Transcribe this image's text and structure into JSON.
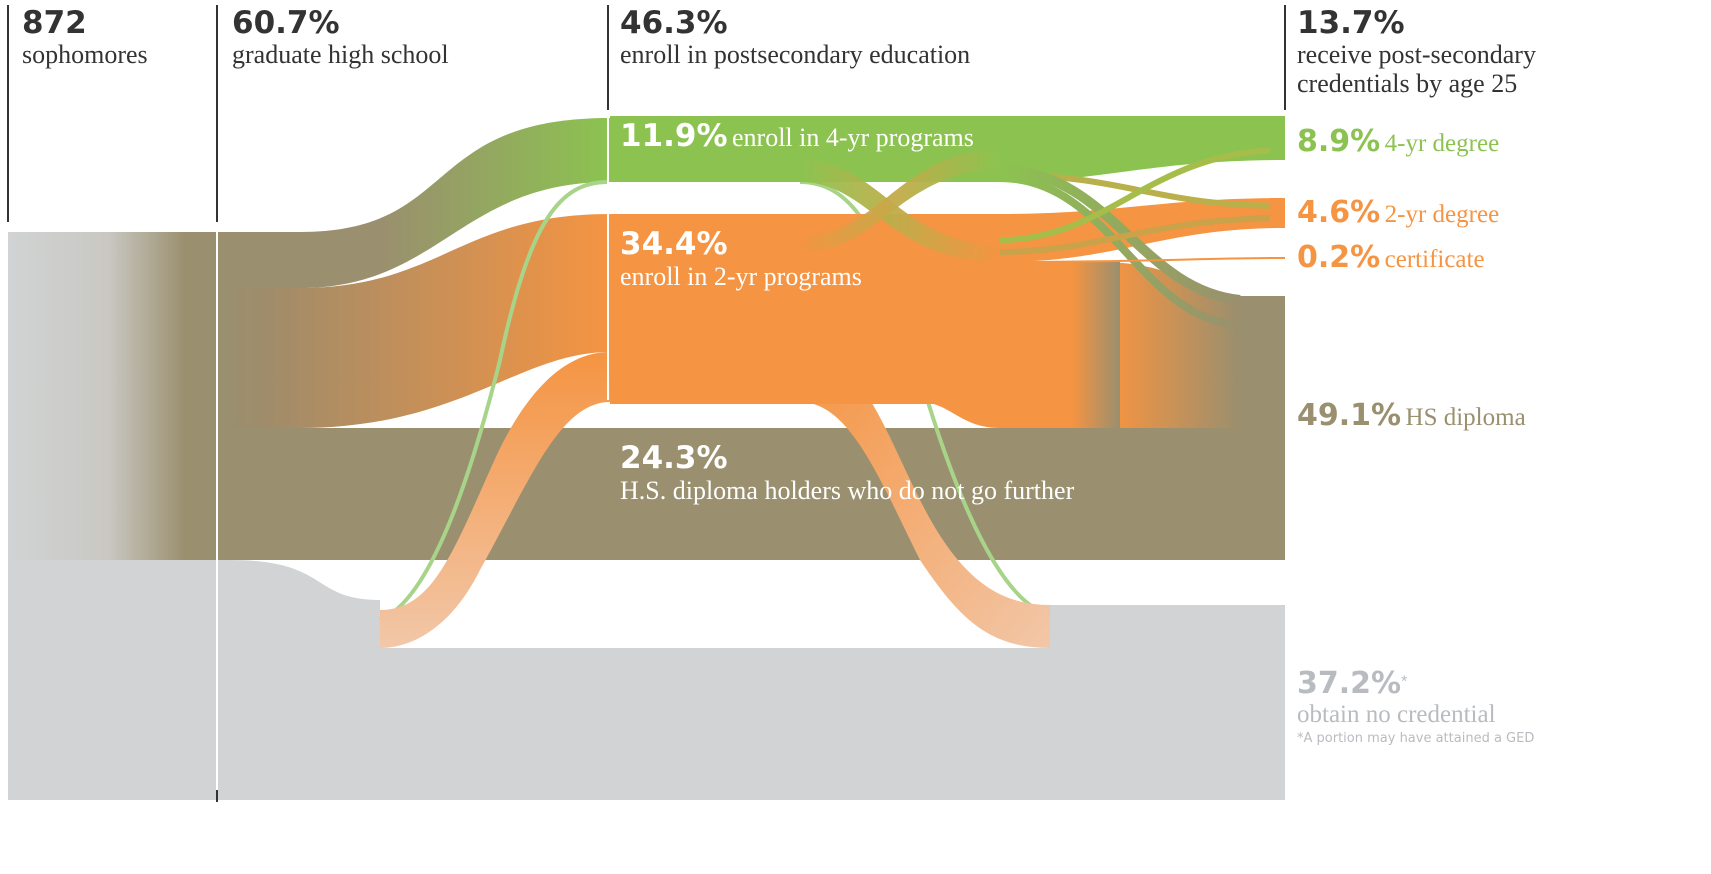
{
  "columns": [
    {
      "value": "872",
      "label": "sophomores"
    },
    {
      "value": "60.7%",
      "label": "graduate high school"
    },
    {
      "value": "46.3%",
      "label": "enroll in postsecondary education"
    },
    {
      "value": "13.7%",
      "label_line1": "receive post-secondary",
      "label_line2": "credentials by age 25"
    }
  ],
  "middle": {
    "four_year": {
      "value": "11.9%",
      "label": "enroll in 4-yr programs"
    },
    "two_year": {
      "value": "34.4%",
      "label": "enroll in 2-yr programs"
    },
    "hs_only": {
      "value": "24.3%",
      "label": "H.S. diploma holders who do not go further"
    }
  },
  "outcomes": {
    "four_year_degree": {
      "value": "8.9%",
      "label": "4-yr degree"
    },
    "two_year_degree": {
      "value": "4.6%",
      "label": "2-yr degree"
    },
    "certificate": {
      "value": "0.2%",
      "label": "certificate"
    },
    "hs_diploma": {
      "value": "49.1%",
      "label": "HS diploma"
    },
    "no_credential": {
      "value": "37.2%",
      "asterisk": "*",
      "label": "obtain no credential"
    }
  },
  "footnote": "*A portion may have attained a GED",
  "colors": {
    "green": "#8cc350",
    "orange": "#f59442",
    "olive": "#9a8f6e",
    "gray": "#d1d3d4",
    "text_dark": "#333333",
    "gray_text": "#b8bcc0"
  }
}
